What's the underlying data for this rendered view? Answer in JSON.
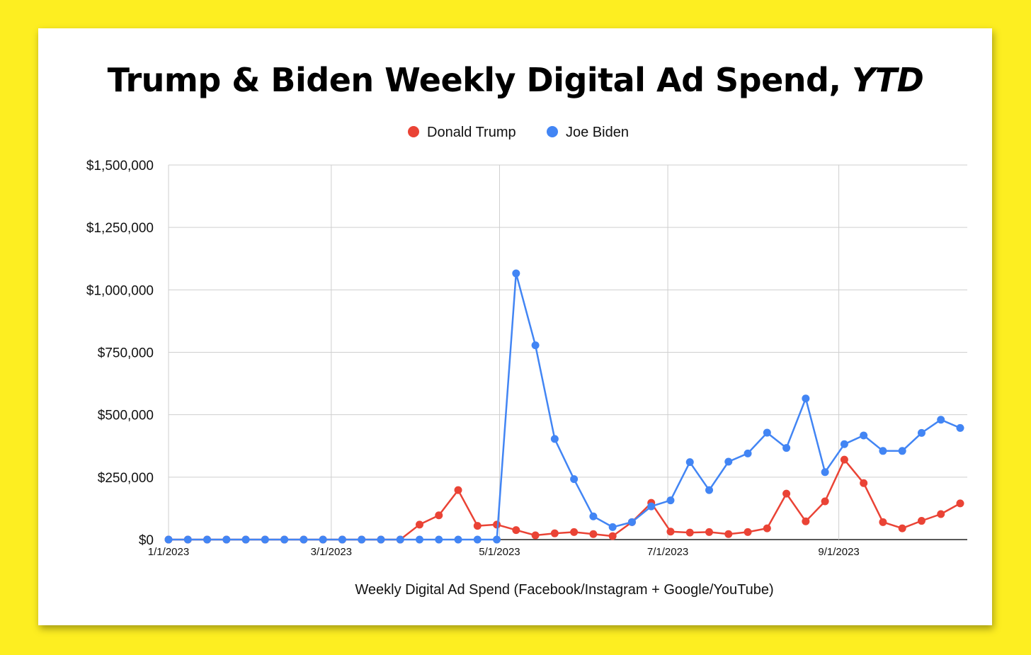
{
  "chart_data": {
    "type": "line",
    "title": "Trump & Biden Weekly Digital Ad Spend,",
    "title_suffix": "YTD",
    "xlabel": "Weekly Digital Ad Spend (Facebook/Instagram + Google/YouTube)",
    "ylabel": "",
    "ylim": [
      0,
      1500000
    ],
    "yticks": [
      0,
      250000,
      500000,
      750000,
      1000000,
      1250000,
      1500000
    ],
    "ytick_labels": [
      "$0",
      "$250,000",
      "$500,000",
      "$750,000",
      "$1,000,000",
      "$1,250,000",
      "$1,500,000"
    ],
    "x_start_week": 0,
    "x_end_week": 40,
    "xticks": [
      {
        "week": 0,
        "label": "1/1/2023"
      },
      {
        "week": 8.4286,
        "label": "3/1/2023"
      },
      {
        "week": 17.1429,
        "label": "5/1/2023"
      },
      {
        "week": 25.8571,
        "label": "7/1/2023"
      },
      {
        "week": 34.7143,
        "label": "9/1/2023"
      }
    ],
    "legend_position": "top",
    "series": [
      {
        "name": "Donald Trump",
        "color": "#EA4335",
        "values": [
          0,
          0,
          0,
          0,
          0,
          0,
          0,
          0,
          0,
          0,
          0,
          0,
          0,
          60000,
          97000,
          198000,
          55000,
          60000,
          38000,
          17000,
          25000,
          30000,
          22000,
          14000,
          70000,
          147000,
          32000,
          28000,
          30000,
          22000,
          30000,
          45000,
          184000,
          73000,
          153000,
          320000,
          226000,
          70000,
          45000,
          75000,
          102000,
          145000
        ]
      },
      {
        "name": "Joe Biden",
        "color": "#4285F4",
        "values": [
          0,
          0,
          0,
          0,
          0,
          0,
          0,
          0,
          0,
          0,
          0,
          0,
          0,
          0,
          0,
          0,
          0,
          0,
          1066000,
          778000,
          403000,
          242000,
          93000,
          50000,
          70000,
          133000,
          157000,
          310000,
          198000,
          312000,
          345000,
          428000,
          367000,
          565000,
          270000,
          382000,
          417000,
          355000,
          355000,
          427000,
          480000,
          447000
        ]
      }
    ]
  }
}
